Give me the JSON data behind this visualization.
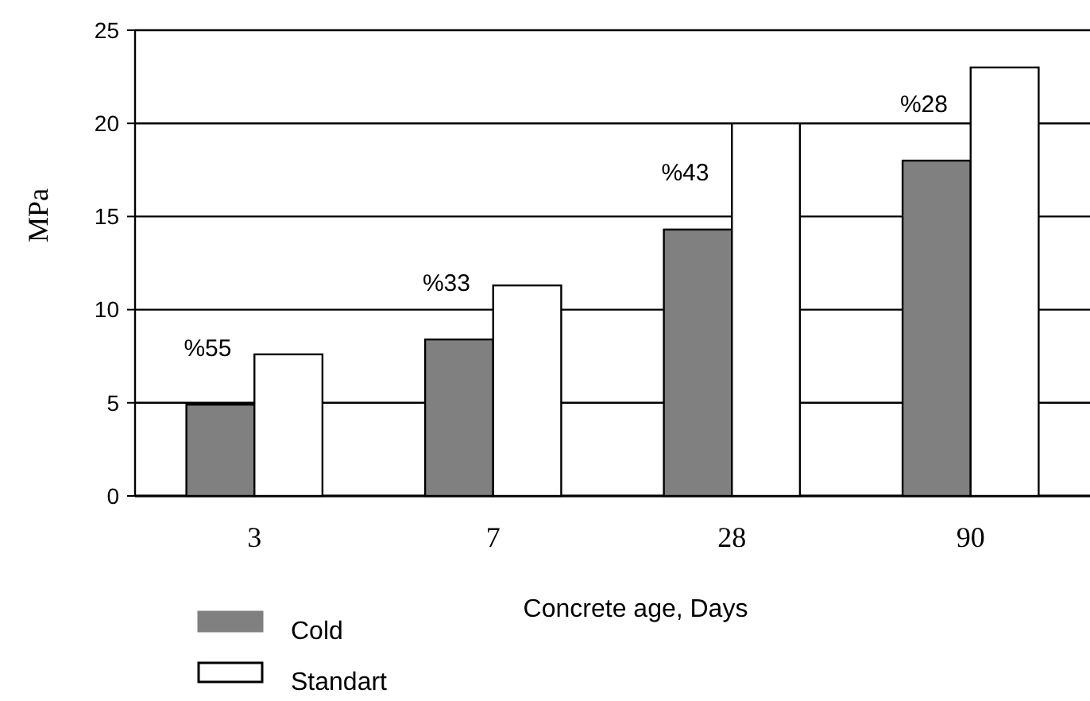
{
  "chart_data": {
    "type": "bar",
    "xlabel": "Concrete age, Days",
    "ylabel": "MPa",
    "categories": [
      "3",
      "7",
      "28",
      "90"
    ],
    "series": [
      {
        "name": "Cold",
        "color": "#808080",
        "values": [
          4.9,
          8.4,
          14.3,
          18
        ]
      },
      {
        "name": "Standart",
        "color": "#ffffff",
        "values": [
          7.6,
          11.3,
          20,
          23
        ]
      }
    ],
    "annotations": [
      "%55",
      "%33",
      "%43",
      "%28"
    ],
    "ylim": [
      0,
      25
    ],
    "yticks": [
      0,
      5,
      10,
      15,
      20,
      25
    ],
    "grid": "y",
    "legend": "bottom left"
  }
}
